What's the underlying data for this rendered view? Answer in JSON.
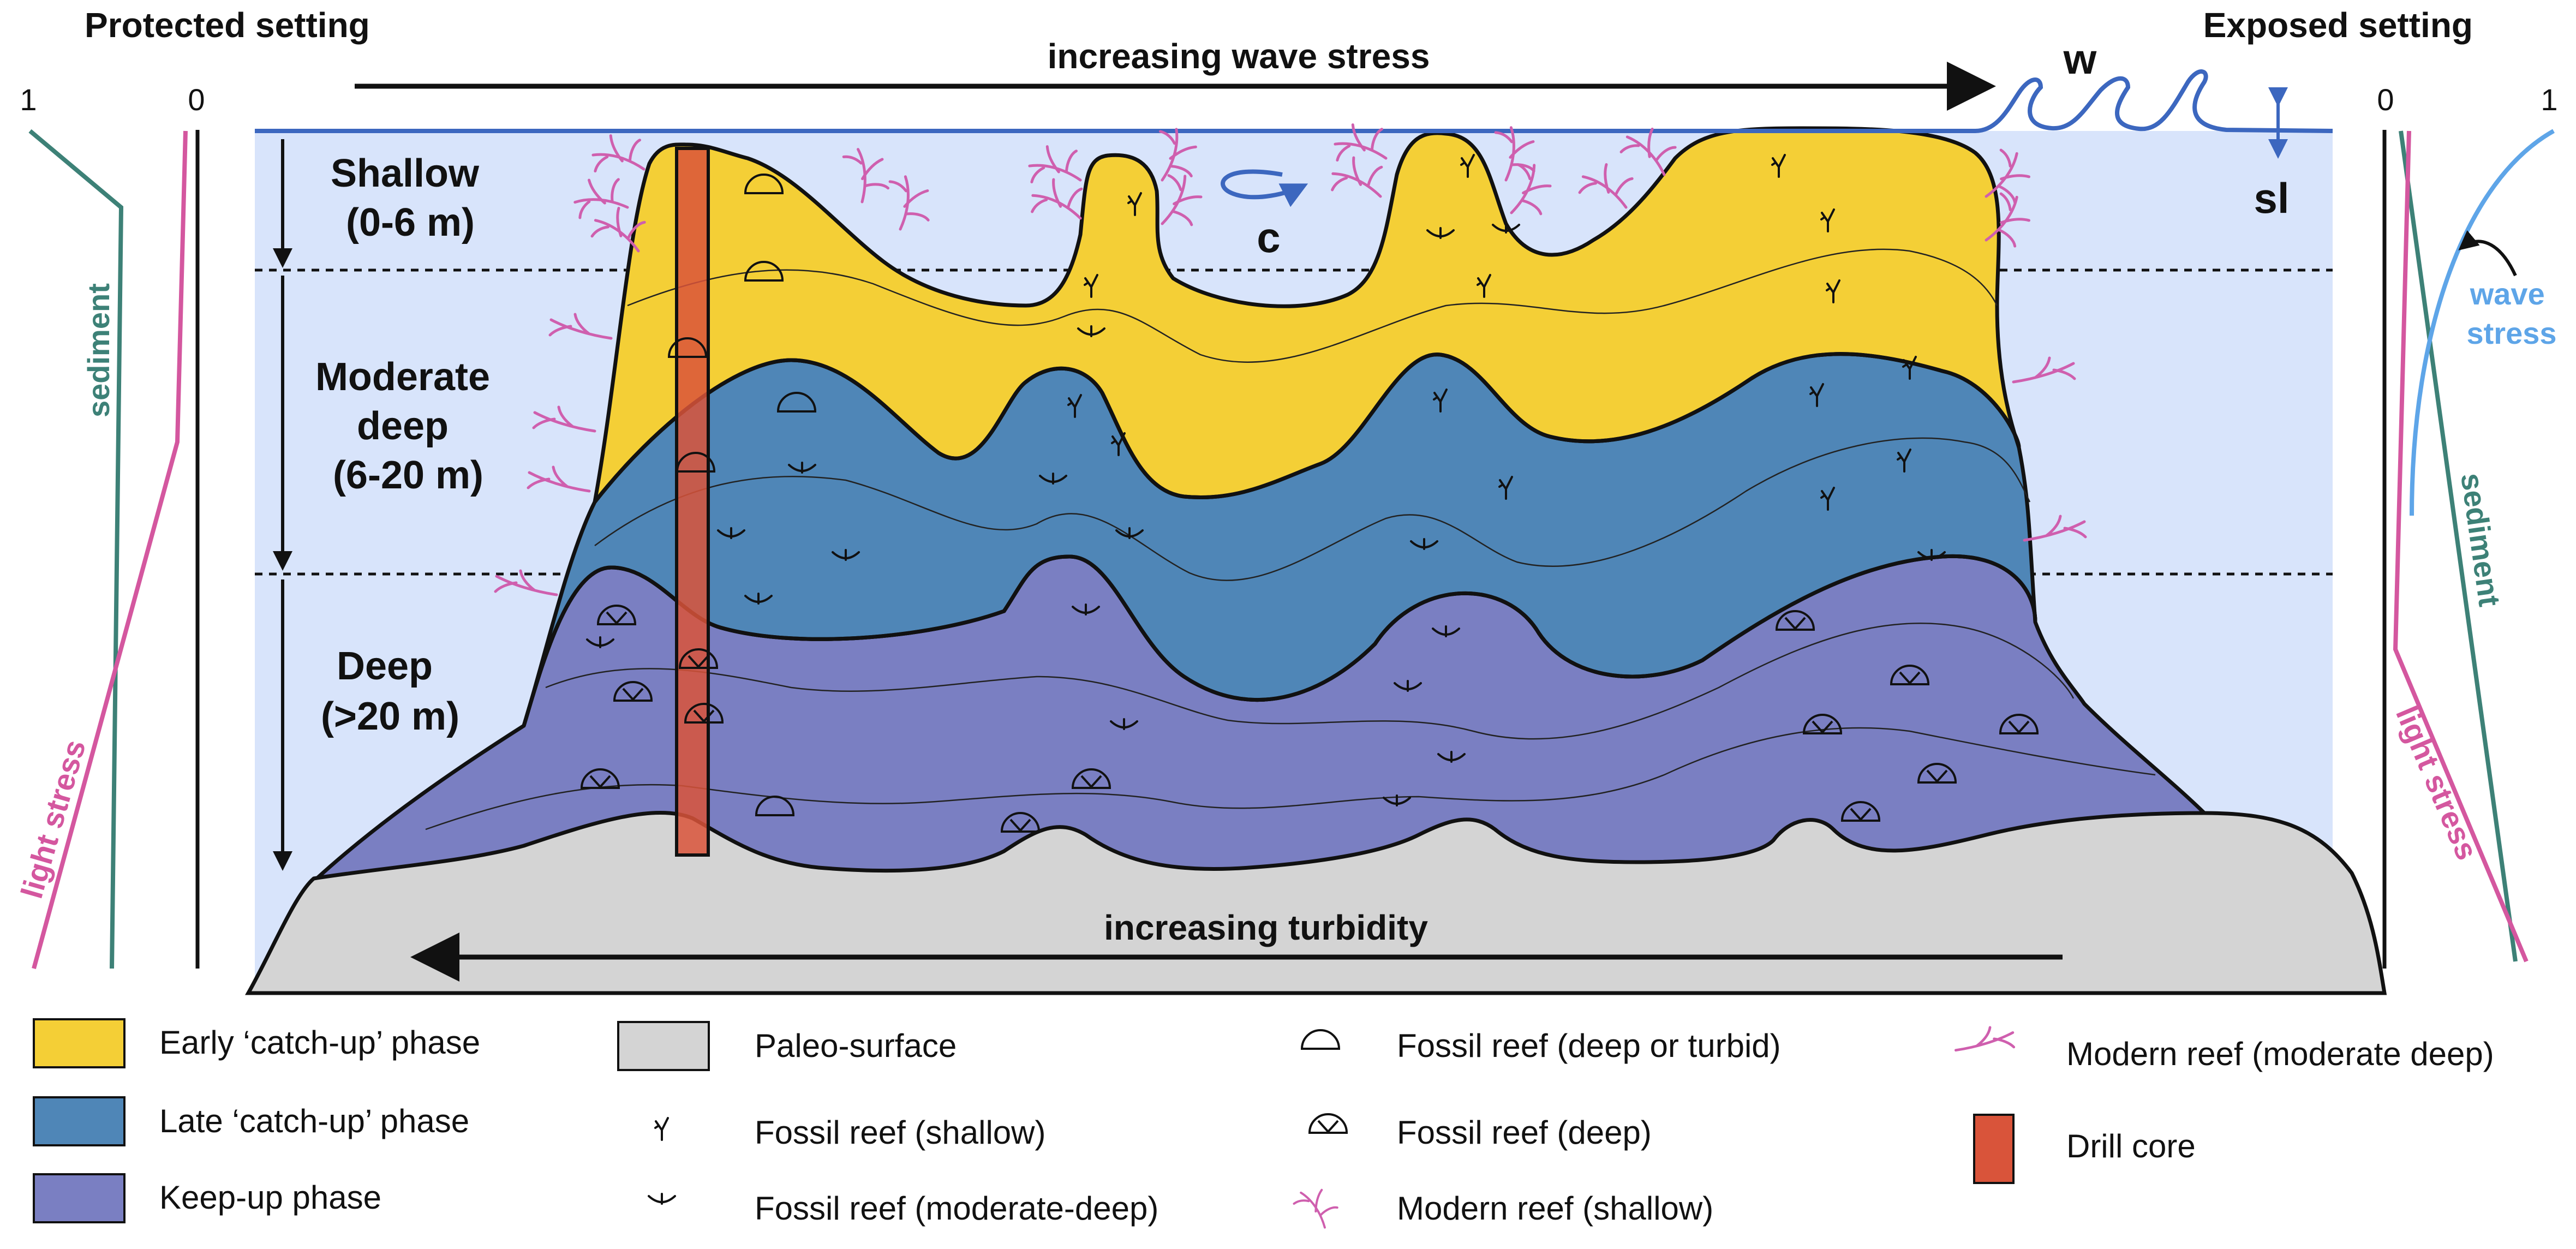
{
  "titles": {
    "left": "Protected setting",
    "right": "Exposed setting"
  },
  "arrows": {
    "top": "increasing wave stress",
    "bottom": "increasing turbidity"
  },
  "water_labels": {
    "wave": "w",
    "current": "c",
    "sea_level": "sl"
  },
  "depth_zones": {
    "shallow_1": "Shallow",
    "shallow_2": "(0-6 m)",
    "moderate_1": "Moderate",
    "moderate_2": "deep",
    "moderate_3": "(6-20 m)",
    "deep_1": "Deep",
    "deep_2": "(>20 m)"
  },
  "left_profile": {
    "tick_max": "1",
    "tick_min": "0",
    "sediment": "sediment",
    "light_stress": "light stress"
  },
  "right_profile": {
    "tick_min": "0",
    "tick_max": "1",
    "wave_stress_1": "wave",
    "wave_stress_2": "stress",
    "sediment": "sediment",
    "light_stress": "light stress"
  },
  "legend": {
    "early_catchup": "Early ‘catch-up’ phase",
    "late_catchup": "Late ‘catch-up’ phase",
    "keepup": "Keep-up phase",
    "paleo_surface": "Paleo-surface",
    "fossil_shallow": "Fossil reef (shallow)",
    "fossil_moderate": "Fossil reef (moderate-deep)",
    "fossil_deep_turbid": "Fossil reef (deep or turbid)",
    "fossil_deep": "Fossil reef (deep)",
    "modern_shallow": "Modern reef (shallow)",
    "modern_moderate": "Modern reef (moderate deep)",
    "drill_core": "Drill core"
  },
  "colors": {
    "water": "#d8e4fb",
    "early": "#f4cf36",
    "late": "#4f86b7",
    "keepup": "#7a7fc2",
    "paleo": "#d4d4d4",
    "core": "#d9543a",
    "modern_reef": "#cf5fae",
    "sea_line": "#3c67bf",
    "sediment_line": "#3d8177",
    "light_line": "#d4579f",
    "wave_line": "#5ea5e8"
  }
}
